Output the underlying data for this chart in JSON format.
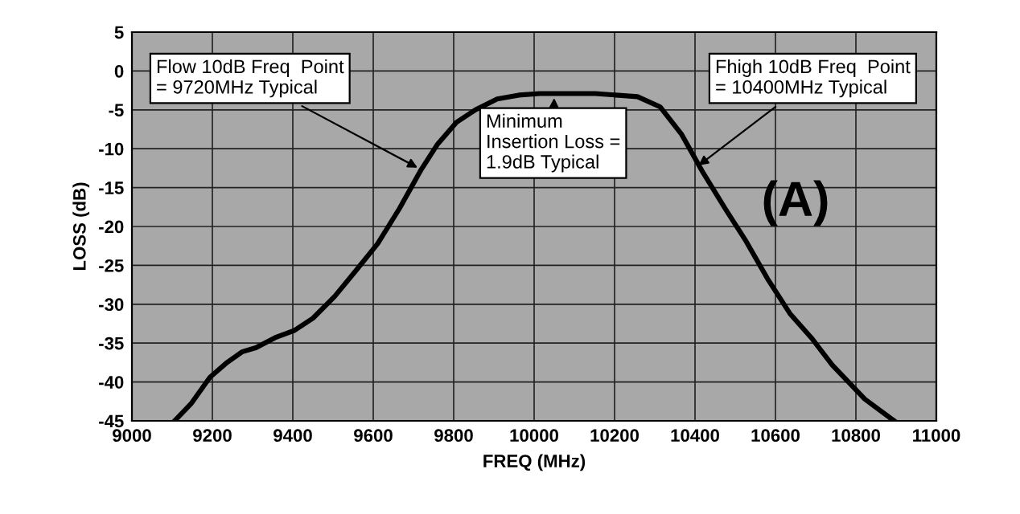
{
  "chart_data": {
    "type": "line",
    "xlabel": "FREQ (MHz)",
    "ylabel": "LOSS (dB)",
    "x": [
      9106,
      9147,
      9194,
      9234,
      9275,
      9308,
      9356,
      9403,
      9450,
      9504,
      9558,
      9611,
      9665,
      9719,
      9760,
      9807,
      9854,
      9908,
      9962,
      10014,
      10152,
      10257,
      10313,
      10366,
      10418,
      10475,
      10527,
      10580,
      10636,
      10689,
      10741,
      10822,
      10895
    ],
    "series": [
      {
        "color": "#000000",
        "values": [
          -45,
          -42.8,
          -39.4,
          -37.6,
          -36.1,
          -35.6,
          -34.3,
          -33.4,
          -31.8,
          -29,
          -25.6,
          -22.2,
          -17.7,
          -12.7,
          -9.4,
          -6.6,
          -5,
          -3.6,
          -3.1,
          -2.9,
          -2.9,
          -3.3,
          -4.6,
          -8.1,
          -12.9,
          -17.7,
          -21.9,
          -26.7,
          -31.2,
          -34.3,
          -37.8,
          -42.2,
          -45
        ]
      }
    ],
    "xlim": [
      9000,
      11000
    ],
    "ylim": [
      -45,
      5
    ],
    "xticks": [
      9000,
      9200,
      9400,
      9600,
      9800,
      10000,
      10200,
      10400,
      10600,
      10800,
      11000
    ],
    "yticks": [
      -45,
      -40,
      -35,
      -30,
      -25,
      -20,
      -15,
      -10,
      -5,
      0,
      5
    ],
    "grid": true,
    "marker": "none",
    "line_style": "solid",
    "annotations": [
      {
        "text": "Flow 10dB Freq  Point\n= 9720MHz Typical",
        "x": 9720,
        "y": -12.7
      },
      {
        "text": "Minimum\nInsertion Loss =\n1.9dB Typical",
        "x": 10050,
        "y": -2.9
      },
      {
        "text": "Fhigh 10dB Freq  Point\n= 10400MHz Typical",
        "x": 10400,
        "y": -12.5
      },
      "(A)"
    ]
  }
}
